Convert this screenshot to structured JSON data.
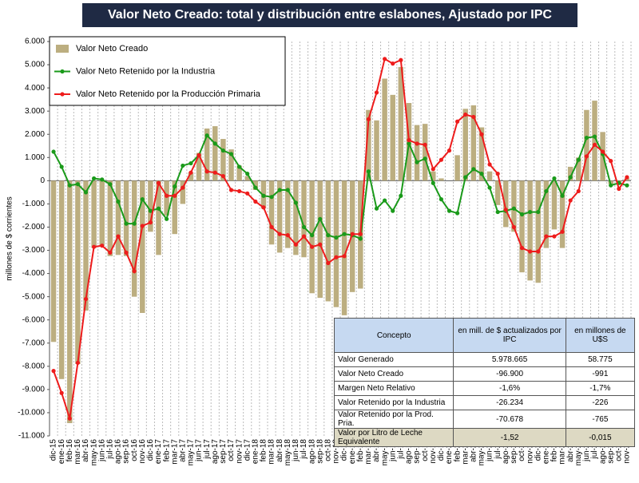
{
  "chart_data": {
    "type": "combo",
    "title": "Valor Neto Creado: total y distribución entre eslabones, Ajustado  por IPC",
    "y_label": "millones de $ corrientes",
    "categories": [
      "dic-15",
      "ene-16",
      "feb-16",
      "mar-16",
      "abr-16",
      "may-16",
      "jun-16",
      "jul-16",
      "ago-16",
      "sep-16",
      "oct-16",
      "nov-16",
      "dic-16",
      "ene-17",
      "feb-17",
      "mar-17",
      "abr-17",
      "may-17",
      "jun-17",
      "jul-17",
      "ago-17",
      "sep-17",
      "oct-17",
      "nov-17",
      "dic-17",
      "ene-18",
      "feb-18",
      "mar-18",
      "abr-18",
      "may-18",
      "jun-18",
      "jul-18",
      "ago-18",
      "sep-18",
      "oct-18",
      "nov-18",
      "dic-18",
      "ene-19",
      "feb-19",
      "mar-19",
      "abr-19",
      "may-19",
      "jun-19",
      "jul-19",
      "ago-19",
      "sep-19",
      "oct-19",
      "nov-19",
      "dic-19",
      "ene-20",
      "feb-20",
      "mar-20",
      "abr-20",
      "may-20",
      "jun-20",
      "jul-20",
      "ago-20",
      "sep-20",
      "oct-20",
      "nov-20",
      "dic-20",
      "ene-21",
      "feb-21",
      "mar-21",
      "abr-21",
      "may-21",
      "jun-21",
      "jul-21",
      "ago-21",
      "sep-21",
      "oct-21",
      "nov-21"
    ],
    "series": [
      {
        "name": "Valor Neto Creado",
        "type": "bar",
        "color": "#bcae80",
        "values": [
          -6950,
          -8550,
          -10450,
          -7900,
          -5600,
          -2900,
          -2800,
          -3250,
          -3200,
          -3250,
          -5000,
          -5700,
          -2200,
          -3200,
          -1500,
          -2300,
          -1000,
          350,
          1200,
          2250,
          2350,
          1800,
          1350,
          650,
          200,
          -400,
          -1200,
          -2750,
          -3100,
          -2900,
          -3200,
          -3300,
          -4850,
          -5050,
          -5200,
          -5450,
          -5800,
          -4800,
          -4650,
          3050,
          2600,
          4400,
          3700,
          4900,
          3350,
          2400,
          2450,
          400,
          100,
          0,
          1100,
          3100,
          3250,
          2300,
          400,
          -1050,
          -2000,
          -2200,
          -3950,
          -4300,
          -4400,
          -2900,
          -2100,
          -2900,
          600,
          1000,
          3050,
          3450,
          2100,
          -150,
          -150,
          100
        ]
      },
      {
        "name": "Valor Neto Retenido por la Industria",
        "type": "line",
        "color": "#1a9a1a",
        "values": [
          1250,
          600,
          -200,
          -150,
          -500,
          100,
          50,
          -150,
          -900,
          -1850,
          -1850,
          -800,
          -1300,
          -1200,
          -1650,
          -250,
          650,
          750,
          1100,
          1950,
          1600,
          1300,
          1150,
          600,
          300,
          -300,
          -650,
          -700,
          -400,
          -400,
          -950,
          -2000,
          -2350,
          -1650,
          -2350,
          -2450,
          -2300,
          -2350,
          -2500,
          400,
          -1200,
          -850,
          -1300,
          -650,
          1600,
          800,
          950,
          -100,
          -800,
          -1300,
          -1400,
          150,
          500,
          300,
          -300,
          -1350,
          -1300,
          -1200,
          -1450,
          -1350,
          -1350,
          -450,
          100,
          -650,
          150,
          900,
          1850,
          1900,
          1150,
          -200,
          -100,
          -200
        ]
      },
      {
        "name": "Valor Neto Retenido por la Producción Primaria",
        "type": "line",
        "color": "#ee1c1c",
        "values": [
          -8200,
          -9150,
          -10250,
          -7850,
          -5100,
          -2850,
          -2800,
          -3100,
          -2400,
          -3100,
          -3900,
          -1950,
          -1800,
          -100,
          -650,
          -650,
          -300,
          350,
          1100,
          400,
          350,
          200,
          -400,
          -450,
          -550,
          -900,
          -1150,
          -2000,
          -2300,
          -2350,
          -2750,
          -2400,
          -2850,
          -2750,
          -3550,
          -3300,
          -3250,
          -2300,
          -2300,
          2650,
          3800,
          5250,
          5050,
          5200,
          1750,
          1600,
          1550,
          500,
          900,
          1300,
          2550,
          2850,
          2750,
          2000,
          700,
          300,
          -1250,
          -2000,
          -2900,
          -3050,
          -3050,
          -2400,
          -2400,
          -2200,
          -850,
          -450,
          1050,
          1550,
          1250,
          850,
          -350,
          150
        ]
      }
    ],
    "ylim": [
      -11000,
      6000
    ],
    "yticks": [
      {
        "value": -11000,
        "label": "-11.000"
      },
      {
        "value": -10000,
        "label": "-10.000"
      },
      {
        "value": -9000,
        "label": "-9.000"
      },
      {
        "value": -8000,
        "label": "-8.000"
      },
      {
        "value": -7000,
        "label": "-7.000"
      },
      {
        "value": -6000,
        "label": "-6.000"
      },
      {
        "value": -5000,
        "label": "-5.000"
      },
      {
        "value": -4000,
        "label": "-4.000"
      },
      {
        "value": -3000,
        "label": "-3.000"
      },
      {
        "value": -2000,
        "label": "-2.000"
      },
      {
        "value": -1000,
        "label": "-1.000"
      },
      0,
      {
        "value": 1000,
        "label": "1.000"
      },
      {
        "value": 2000,
        "label": "2.000"
      },
      {
        "value": 3000,
        "label": "3.000"
      },
      {
        "value": 4000,
        "label": "4.000"
      },
      {
        "value": 5000,
        "label": "5.000"
      },
      {
        "value": 6000,
        "label": "6.000"
      }
    ],
    "grid": "x",
    "legend": "top-left"
  },
  "table": {
    "columns": [
      "Concepto",
      "en mill. de $ actualizados por IPC",
      "en millones de U$S"
    ],
    "rows": [
      [
        "Valor Generado",
        "5.978.665",
        "58.775"
      ],
      [
        "Valor Neto Creado",
        "-96.900",
        "-991"
      ],
      [
        "Margen Neto Relativo",
        "-1,6%",
        "-1,7%"
      ],
      [
        "Valor Retenido por la Industria",
        "-26.234",
        "-226"
      ],
      [
        "Valor Retenido por la Prod. Pria.",
        "-70.678",
        "-765"
      ],
      [
        "Valor por Litro de Leche Equivalente",
        "-1,52",
        "-0,015"
      ]
    ]
  }
}
